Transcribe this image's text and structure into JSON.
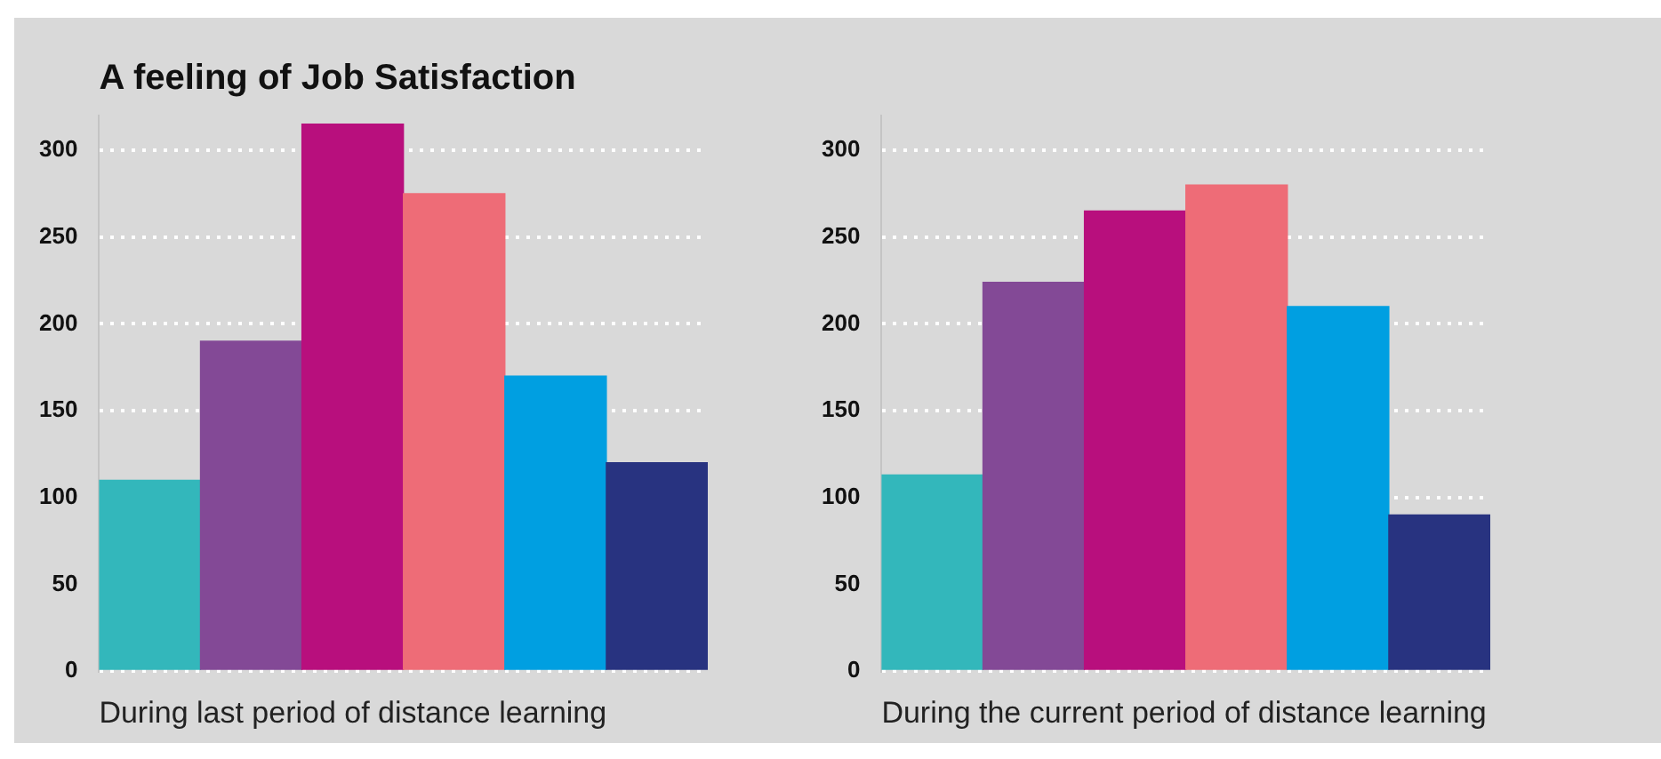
{
  "chart_data": [
    {
      "type": "bar",
      "title": "A feeling of Job Satisfaction",
      "xlabel": "During last period of distance learning",
      "categories": [
        null,
        null,
        null,
        null,
        null,
        null
      ],
      "values": [
        110,
        190,
        315,
        275,
        170,
        120
      ],
      "colors": [
        "#33b7bb",
        "#834996",
        "#b80f7d",
        "#ee6c77",
        "#009fe1",
        "#283380"
      ],
      "ylim": [
        0,
        320
      ],
      "yticks": [
        0,
        50,
        100,
        150,
        200,
        250,
        300
      ],
      "grid": "y",
      "tick_labels": "y"
    },
    {
      "type": "bar",
      "xlabel": "During the current period of distance learning",
      "categories": [
        null,
        null,
        null,
        null,
        null,
        null
      ],
      "values": [
        113,
        224,
        265,
        280,
        210,
        90
      ],
      "colors": [
        "#33b7bb",
        "#834996",
        "#b80f7d",
        "#ee6c77",
        "#009fe1",
        "#283380"
      ],
      "ylim": [
        0,
        320
      ],
      "yticks": [
        0,
        50,
        100,
        150,
        200,
        250,
        300
      ],
      "grid": "y",
      "tick_labels": "y"
    }
  ]
}
